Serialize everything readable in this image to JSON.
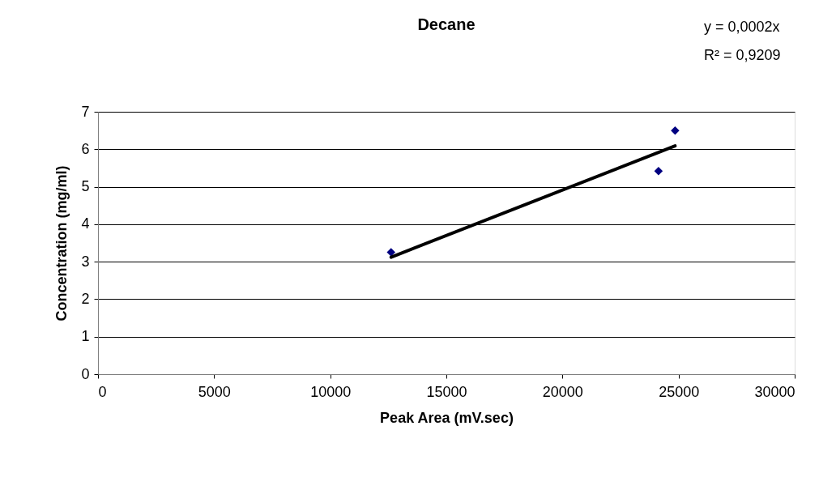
{
  "chart_data": {
    "type": "scatter",
    "title": "Decane",
    "xlabel": "Peak Area (mV.sec)",
    "ylabel": "Concentration (mg/ml)",
    "annotations": [
      "y = 0,0002x",
      "R² = 0,9209"
    ],
    "series": [
      {
        "color": "#000080",
        "marker": "diamond",
        "x": [
          12620,
          24136,
          24850
        ],
        "values": [
          3.25,
          5.42,
          6.5
        ]
      },
      {
        "type": "line",
        "color": "#000000",
        "marker": "none",
        "line_style": "solid",
        "x": [
          12620,
          24850
        ],
        "values": [
          3.12,
          6.09
        ]
      }
    ],
    "xlim": [
      0,
      30000
    ],
    "xticks": [
      0,
      5000,
      10000,
      15000,
      20000,
      25000,
      30000
    ],
    "ylim": [
      0,
      7
    ],
    "yticks": [
      0,
      1,
      2,
      3,
      4,
      5,
      6,
      7
    ],
    "grid": "y"
  }
}
